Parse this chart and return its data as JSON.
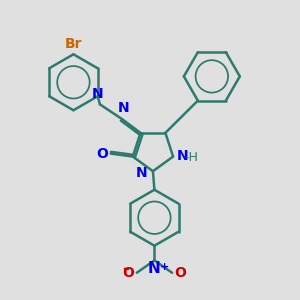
{
  "background_color": "#e0e0e0",
  "bond_color": "#2d7a6e",
  "bond_width": 1.8,
  "atom_colors": {
    "Br": "#cc6600",
    "N": "#0000ee",
    "O": "#cc0000",
    "H_color": "#2d7a6e"
  },
  "label_fontsize": 10,
  "label_fontsize_small": 9,
  "xlim": [
    0,
    10
  ],
  "ylim": [
    0,
    10
  ],
  "figsize": [
    3.0,
    3.0
  ],
  "dpi": 100
}
